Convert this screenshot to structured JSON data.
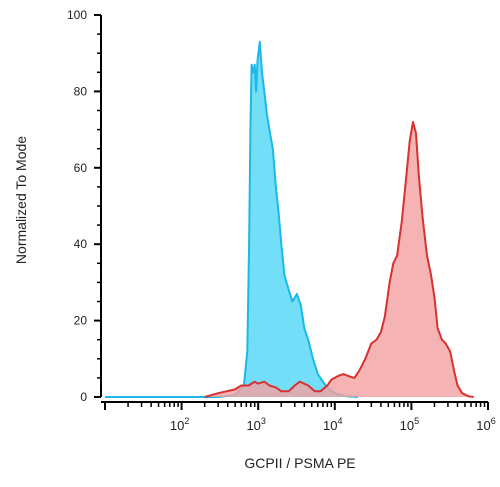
{
  "chart_data": {
    "type": "area",
    "title": "",
    "xlabel": "GCPII / PSMA PE",
    "ylabel": "Normalized To Mode",
    "xscale": "log",
    "xlim": [
      10,
      1000000
    ],
    "ylim": [
      0,
      100
    ],
    "yticks": [
      0,
      20,
      40,
      60,
      80,
      100
    ],
    "xticks": [
      {
        "value": 100,
        "base": "10",
        "exp": "2"
      },
      {
        "value": 1000,
        "base": "10",
        "exp": "3"
      },
      {
        "value": 10000,
        "base": "10",
        "exp": "4"
      },
      {
        "value": 100000,
        "base": "10",
        "exp": "5"
      },
      {
        "value": 1000000,
        "base": "10",
        "exp": "6"
      }
    ],
    "grid": false,
    "legend": "none",
    "series": [
      {
        "color": "#1bb8e8",
        "fill": "#4fd6f5",
        "points": [
          [
            10,
            0
          ],
          [
            300,
            0
          ],
          [
            500,
            0.5
          ],
          [
            650,
            3
          ],
          [
            720,
            12
          ],
          [
            760,
            40
          ],
          [
            790,
            70
          ],
          [
            820,
            87
          ],
          [
            860,
            85
          ],
          [
            900,
            87
          ],
          [
            940,
            80
          ],
          [
            980,
            88
          ],
          [
            1050,
            93
          ],
          [
            1120,
            85
          ],
          [
            1200,
            80
          ],
          [
            1300,
            74
          ],
          [
            1400,
            70
          ],
          [
            1550,
            65
          ],
          [
            1700,
            55
          ],
          [
            1850,
            48
          ],
          [
            2000,
            40
          ],
          [
            2200,
            32
          ],
          [
            2500,
            28
          ],
          [
            2800,
            25
          ],
          [
            3200,
            27
          ],
          [
            3600,
            24
          ],
          [
            4000,
            18
          ],
          [
            4500,
            15
          ],
          [
            5200,
            10
          ],
          [
            6000,
            6
          ],
          [
            7000,
            4
          ],
          [
            8000,
            2.5
          ],
          [
            10000,
            1
          ],
          [
            14000,
            0.2
          ],
          [
            20000,
            0
          ]
        ]
      },
      {
        "color": "#d93030",
        "fill": "#f2a0a0",
        "points": [
          [
            200,
            0
          ],
          [
            300,
            1
          ],
          [
            500,
            2
          ],
          [
            600,
            3
          ],
          [
            750,
            3
          ],
          [
            900,
            4
          ],
          [
            1000,
            3.5
          ],
          [
            1200,
            4
          ],
          [
            1400,
            3
          ],
          [
            1700,
            2.5
          ],
          [
            2000,
            1.5
          ],
          [
            2500,
            1.5
          ],
          [
            3000,
            3
          ],
          [
            3500,
            4
          ],
          [
            4500,
            3
          ],
          [
            5500,
            1.5
          ],
          [
            6500,
            1.5
          ],
          [
            8000,
            3
          ],
          [
            9000,
            4.5
          ],
          [
            11000,
            5.5
          ],
          [
            13000,
            6
          ],
          [
            15000,
            5.5
          ],
          [
            18000,
            5
          ],
          [
            21000,
            7
          ],
          [
            25000,
            10
          ],
          [
            30000,
            14
          ],
          [
            35000,
            15
          ],
          [
            40000,
            17
          ],
          [
            45000,
            21
          ],
          [
            52000,
            30
          ],
          [
            58000,
            35
          ],
          [
            65000,
            37
          ],
          [
            75000,
            46
          ],
          [
            85000,
            57
          ],
          [
            95000,
            67
          ],
          [
            105000,
            72
          ],
          [
            115000,
            69
          ],
          [
            125000,
            58
          ],
          [
            140000,
            47
          ],
          [
            160000,
            37
          ],
          [
            180000,
            32
          ],
          [
            200000,
            26
          ],
          [
            220000,
            18
          ],
          [
            250000,
            15
          ],
          [
            280000,
            14
          ],
          [
            320000,
            12
          ],
          [
            360000,
            7
          ],
          [
            400000,
            3
          ],
          [
            460000,
            1
          ],
          [
            550000,
            0.2
          ],
          [
            650000,
            0
          ]
        ]
      }
    ]
  }
}
